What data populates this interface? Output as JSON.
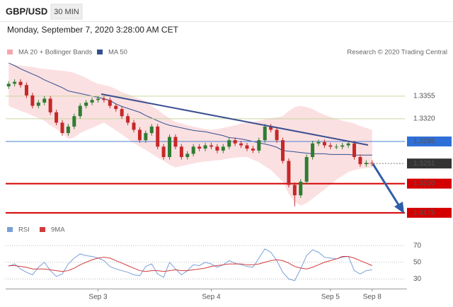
{
  "chart_data": [
    {
      "type": "candlestick",
      "title": "GBP/USD",
      "interval": "30 MIN",
      "subtitle": "Monday, September 7, 2020 3:28:00 AM CET",
      "credit": "Research © 2020 Trading Central",
      "categories": [
        null,
        null,
        null,
        null,
        null,
        null,
        null,
        null,
        null,
        null,
        null,
        null,
        null,
        null,
        null,
        "Sep 3",
        null,
        null,
        null,
        null,
        null,
        null,
        null,
        null,
        null,
        null,
        null,
        null,
        null,
        null,
        null,
        null,
        null,
        null,
        "Sep 4",
        null,
        null,
        null,
        null,
        null,
        null,
        null,
        null,
        null,
        null,
        null,
        null,
        null,
        null,
        null,
        null,
        null,
        null,
        null,
        "Sep 5",
        null,
        null,
        null,
        null,
        null,
        null,
        "Sep 8"
      ],
      "open": [
        1.337,
        1.3374,
        1.3377,
        1.3372,
        1.3356,
        1.334,
        1.3345,
        1.3351,
        1.333,
        1.3314,
        1.3298,
        1.3308,
        1.3324,
        1.334,
        1.3345,
        1.3349,
        1.3351,
        1.3349,
        1.334,
        1.3335,
        1.3324,
        1.3314,
        1.3303,
        1.3287,
        1.3298,
        1.3308,
        1.3277,
        1.3261,
        1.3292,
        1.3277,
        1.3261,
        1.3266,
        1.3277,
        1.3274,
        1.3279,
        1.3277,
        1.3271,
        1.3277,
        1.3287,
        1.3282,
        1.3279,
        1.3274,
        1.3271,
        1.3287,
        1.3308,
        1.3303,
        1.3287,
        1.3255,
        1.3218,
        1.3202,
        1.3223,
        1.3261,
        1.3282,
        1.3284,
        1.3279,
        1.3277,
        1.3277,
        1.3279,
        1.3282,
        1.3261,
        1.325,
        1.3252
      ],
      "high": [
        1.3378,
        1.3381,
        1.3381,
        1.3376,
        1.336,
        1.3349,
        1.3355,
        1.3355,
        1.3334,
        1.3318,
        1.3312,
        1.3328,
        1.3344,
        1.3349,
        1.3353,
        1.3355,
        1.3355,
        1.3353,
        1.3344,
        1.3339,
        1.3328,
        1.3318,
        1.3307,
        1.3302,
        1.3312,
        1.3312,
        1.3281,
        1.3296,
        1.3296,
        1.3281,
        1.327,
        1.3281,
        1.3281,
        1.3283,
        1.3283,
        1.3281,
        1.3281,
        1.3291,
        1.3291,
        1.3286,
        1.3283,
        1.3278,
        1.3291,
        1.3312,
        1.3312,
        1.3307,
        1.3291,
        1.3259,
        1.3222,
        1.3227,
        1.3265,
        1.3286,
        1.3288,
        1.3288,
        1.3283,
        1.3281,
        1.3283,
        1.3286,
        1.3286,
        1.3265,
        1.3256,
        1.3256
      ],
      "low": [
        1.3366,
        1.337,
        1.3368,
        1.3352,
        1.3336,
        1.3336,
        1.3341,
        1.3326,
        1.331,
        1.3294,
        1.3294,
        1.3304,
        1.332,
        1.3336,
        1.3341,
        1.3345,
        1.3345,
        1.3336,
        1.3331,
        1.332,
        1.331,
        1.3299,
        1.3283,
        1.3283,
        1.3294,
        1.3273,
        1.3257,
        1.3257,
        1.3273,
        1.3257,
        1.3257,
        1.3262,
        1.327,
        1.327,
        1.3273,
        1.3267,
        1.3267,
        1.3273,
        1.3278,
        1.3275,
        1.327,
        1.3267,
        1.3267,
        1.3283,
        1.3299,
        1.3283,
        1.3251,
        1.3214,
        1.3185,
        1.3198,
        1.3219,
        1.3257,
        1.3278,
        1.3275,
        1.3273,
        1.3273,
        1.3273,
        1.3275,
        1.3257,
        1.3246,
        1.3246,
        1.3247
      ],
      "close": [
        1.3374,
        1.3377,
        1.3372,
        1.3356,
        1.334,
        1.3345,
        1.3351,
        1.333,
        1.3314,
        1.3298,
        1.3308,
        1.3324,
        1.334,
        1.3345,
        1.3349,
        1.3351,
        1.3349,
        1.334,
        1.3335,
        1.3324,
        1.3314,
        1.3303,
        1.3287,
        1.3298,
        1.3308,
        1.3277,
        1.3261,
        1.3292,
        1.3277,
        1.3261,
        1.3266,
        1.3277,
        1.3274,
        1.3279,
        1.3277,
        1.3271,
        1.3277,
        1.3287,
        1.3282,
        1.3279,
        1.3274,
        1.3271,
        1.3287,
        1.3308,
        1.3303,
        1.3287,
        1.3255,
        1.3218,
        1.3202,
        1.3223,
        1.3261,
        1.3282,
        1.3284,
        1.3279,
        1.3277,
        1.3277,
        1.3279,
        1.3282,
        1.3261,
        1.325,
        1.3252,
        1.3251
      ],
      "up_color": "#2e7d32",
      "down_color": "#c62828",
      "overlays": [
        {
          "name": "MA 20 + Bollinger Bands",
          "color": "#f4a6ad",
          "upper": [
            1.3404,
            1.3403,
            1.3402,
            1.3401,
            1.34,
            1.3398,
            1.3397,
            1.3396,
            1.3395,
            1.3394,
            1.3393,
            1.3391,
            1.3387,
            1.3383,
            1.3378,
            1.3374,
            1.3372,
            1.337,
            1.3366,
            1.3361,
            1.3358,
            1.3354,
            1.3351,
            1.3347,
            1.334,
            1.3334,
            1.3327,
            1.3321,
            1.3315,
            1.3313,
            1.331,
            1.3308,
            1.3306,
            1.3304,
            1.3303,
            1.3304,
            1.3306,
            1.3308,
            1.331,
            1.3313,
            1.3314,
            1.3315,
            1.3317,
            1.3319,
            1.3321,
            1.3322,
            1.3324,
            1.3332,
            1.3338,
            1.334,
            1.3338,
            1.3335,
            1.333,
            1.3326,
            1.3323,
            1.332,
            1.3317,
            1.3315,
            1.3313,
            1.3309,
            1.3306,
            1.3303
          ],
          "lower": [
            1.334,
            1.3336,
            1.3332,
            1.3329,
            1.3325,
            1.3321,
            1.3317,
            1.331,
            1.3304,
            1.3298,
            1.3289,
            1.3291,
            1.3298,
            1.3302,
            1.3306,
            1.331,
            1.3314,
            1.3308,
            1.3302,
            1.3296,
            1.3289,
            1.3283,
            1.3277,
            1.3272,
            1.3266,
            1.326,
            1.3255,
            1.3249,
            1.3245,
            1.3247,
            1.3249,
            1.3251,
            1.3253,
            1.3254,
            1.3255,
            1.3256,
            1.3257,
            1.3259,
            1.326,
            1.3261,
            1.3261,
            1.3257,
            1.3253,
            1.3247,
            1.3241,
            1.3232,
            1.3223,
            1.3204,
            1.3192,
            1.3186,
            1.319,
            1.3197,
            1.3204,
            1.3211,
            1.3218,
            1.3226,
            1.3232,
            1.3238,
            1.3241,
            1.3243,
            1.3244,
            1.3245
          ]
        },
        {
          "name": "MA 50",
          "color": "#33508f",
          "values": [
            1.3406,
            1.3402,
            1.3397,
            1.3393,
            1.3389,
            1.3385,
            1.338,
            1.3376,
            1.3372,
            1.3368,
            1.3363,
            1.3361,
            1.3359,
            1.3357,
            1.3355,
            1.3353,
            1.3351,
            1.3348,
            1.3343,
            1.3339,
            1.3336,
            1.3333,
            1.333,
            1.3325,
            1.3321,
            1.3317,
            1.3313,
            1.331,
            1.3308,
            1.3306,
            1.3304,
            1.3302,
            1.3301,
            1.33,
            1.3298,
            1.3296,
            1.3294,
            1.3291,
            1.329,
            1.3289,
            1.3287,
            1.3285,
            1.3283,
            1.3281,
            1.3279,
            1.3276,
            1.3271,
            1.327,
            1.3269,
            1.3268,
            1.3267,
            1.3266,
            1.3266,
            1.3266,
            1.3265,
            1.3265,
            1.3265,
            1.3265,
            1.3264,
            1.3264,
            1.3264,
            1.3264
          ]
        }
      ],
      "levels": [
        {
          "value": 1.3355,
          "color": "#c9d79f",
          "label_color": "#7aa52a",
          "boxed": false,
          "style": "solid"
        },
        {
          "value": 1.332,
          "label": "1.3320",
          "color": "#c9d79f",
          "label_color": "#7aa52a",
          "boxed": false,
          "style": "solid"
        },
        {
          "value": 1.3285,
          "color": "#4a7fd4",
          "label_color": "#2e6fd8",
          "boxed": true,
          "style": "solid"
        },
        {
          "value": 1.3251,
          "color": "#777777",
          "label_color": "#333333",
          "boxed": true,
          "style": "dotted"
        },
        {
          "value": 1.322,
          "label": "1.3220",
          "color": "#d40000",
          "label_color": "#d40000",
          "boxed": true,
          "style": "thick"
        },
        {
          "value": 1.3175,
          "color": "#d40000",
          "label_color": "#d40000",
          "boxed": true,
          "style": "thick"
        }
      ],
      "ylim": [
        1.3165,
        1.3405
      ]
    },
    {
      "type": "line",
      "series": [
        {
          "name": "RSI",
          "color": "#7a9fd8",
          "values": [
            45,
            48,
            42,
            38,
            35,
            44,
            50,
            40,
            33,
            36,
            48,
            55,
            60,
            58,
            57,
            55,
            52,
            45,
            42,
            40,
            38,
            35,
            34,
            45,
            48,
            36,
            32,
            50,
            42,
            35,
            40,
            47,
            46,
            50,
            48,
            44,
            47,
            52,
            49,
            47,
            45,
            44,
            55,
            66,
            62,
            52,
            38,
            30,
            28,
            42,
            58,
            65,
            62,
            56,
            55,
            54,
            56,
            57,
            40,
            36,
            40,
            41
          ]
        },
        {
          "name": "9MA",
          "color": "#d23b3b",
          "values": [
            46,
            46,
            45,
            44,
            42,
            42,
            42,
            41,
            40,
            39,
            40,
            43,
            47,
            50,
            53,
            55,
            56,
            55,
            52,
            49,
            46,
            43,
            40,
            39,
            40,
            40,
            39,
            40,
            41,
            40,
            40,
            41,
            42,
            43,
            45,
            46,
            47,
            48,
            48,
            48,
            47,
            47,
            48,
            50,
            52,
            53,
            52,
            49,
            45,
            43,
            42,
            44,
            47,
            50,
            52,
            54,
            57,
            57,
            55,
            52,
            49,
            46
          ]
        }
      ],
      "ylim": [
        21,
        82
      ],
      "yticks": [
        30,
        50,
        70
      ],
      "grid": true
    }
  ]
}
